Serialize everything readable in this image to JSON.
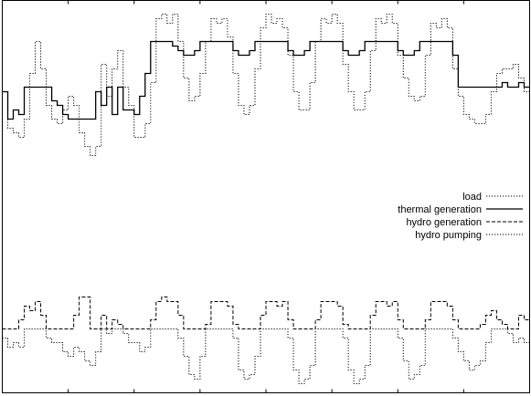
{
  "chart_data": {
    "type": "line",
    "title": "",
    "xlabel": "",
    "ylabel": "",
    "xlim": [
      0,
      48
    ],
    "ylim": [
      -14,
      72
    ],
    "grid": false,
    "legend_position": "right-middle",
    "series": [
      {
        "name": "load",
        "dash": "dotted",
        "x": [
          0,
          0.5,
          1,
          1.5,
          2,
          2.5,
          3,
          3.5,
          4,
          4.5,
          5,
          5.5,
          6,
          6.5,
          7,
          7.5,
          8,
          8.5,
          9,
          9.5,
          10,
          10.5,
          11,
          11.5,
          12,
          12.5,
          13,
          13.5,
          14,
          14.5,
          15,
          15.5,
          16,
          16.5,
          17,
          17.5,
          18,
          18.5,
          19,
          19.5,
          20,
          20.5,
          21,
          21.5,
          22,
          22.5,
          23,
          23.5,
          24,
          24.5,
          25,
          25.5,
          26,
          26.5,
          27,
          27.5,
          28,
          28.5,
          29,
          29.5,
          30,
          30.5,
          31,
          31.5,
          32,
          32.5,
          33,
          33.5,
          34,
          34.5,
          35,
          35.5,
          36,
          36.5,
          37,
          37.5,
          38,
          38.5,
          39,
          39.5,
          40,
          40.5,
          41,
          41.5,
          42,
          42.5,
          43,
          43.5,
          44,
          44.5,
          45,
          45.5,
          46,
          46.5,
          47,
          47.5,
          48
        ],
        "values": [
          52,
          44,
          43,
          42,
          46,
          56,
          63,
          57,
          49,
          46,
          45,
          48,
          51,
          49,
          43,
          40,
          38,
          40,
          58,
          51,
          57,
          61,
          53,
          49,
          42,
          42,
          45,
          54,
          68,
          69,
          67,
          69,
          63,
          55,
          50,
          51,
          56,
          63,
          68,
          67,
          68,
          64,
          56,
          49,
          47,
          49,
          57,
          66,
          69,
          67,
          68,
          66,
          60,
          52,
          48,
          48,
          54,
          63,
          68,
          67,
          69,
          67,
          58,
          52,
          48,
          48,
          52,
          61,
          68,
          67,
          69,
          67,
          60,
          55,
          51,
          50,
          51,
          60,
          67,
          66,
          68,
          66,
          57,
          51,
          47,
          46,
          45,
          45,
          47,
          52,
          56,
          57,
          57,
          58,
          55,
          52,
          53
        ]
      },
      {
        "name": "thermal generation",
        "dash": "solid",
        "x": [
          0,
          0.5,
          1,
          1.5,
          2,
          2.5,
          3,
          3.5,
          4,
          4.5,
          5,
          5.5,
          6,
          6.5,
          7,
          7.5,
          8,
          8.5,
          9,
          9.5,
          10,
          10.5,
          11,
          11.5,
          12,
          12.5,
          13,
          13.5,
          14,
          14.5,
          15,
          15.5,
          16,
          16.5,
          17,
          17.5,
          18,
          18.5,
          19,
          19.5,
          20,
          20.5,
          21,
          21.5,
          22,
          22.5,
          23,
          23.5,
          24,
          24.5,
          25,
          25.5,
          26,
          26.5,
          27,
          27.5,
          28,
          28.5,
          29,
          29.5,
          30,
          30.5,
          31,
          31.5,
          32,
          32.5,
          33,
          33.5,
          34,
          34.5,
          35,
          35.5,
          36,
          36.5,
          37,
          37.5,
          38,
          38.5,
          39,
          39.5,
          40,
          40.5,
          41,
          41.5,
          42,
          42.5,
          43,
          43.5,
          44,
          44.5,
          45,
          45.5,
          46,
          46.5,
          47,
          47.5,
          48
        ],
        "values": [
          52,
          46,
          48,
          47,
          53,
          53,
          53,
          53,
          53,
          50,
          49,
          47,
          46,
          46,
          46,
          46,
          46,
          52,
          49,
          53,
          47,
          53,
          48,
          48,
          47,
          51,
          56,
          63,
          63,
          63,
          63,
          62,
          61,
          60,
          60,
          61,
          63,
          63,
          63,
          63,
          63,
          63,
          61,
          60,
          60,
          61,
          63,
          63,
          63,
          63,
          63,
          63,
          61,
          60,
          60,
          61,
          63,
          63,
          63,
          63,
          63,
          63,
          61,
          60,
          60,
          61,
          63,
          63,
          63,
          63,
          63,
          63,
          61,
          60,
          60,
          61,
          63,
          63,
          63,
          63,
          63,
          63,
          60,
          53,
          53,
          53,
          53,
          53,
          53,
          53,
          53,
          54,
          53,
          53,
          54,
          53,
          53
        ]
      },
      {
        "name": "hydro generation",
        "dash": "dashed",
        "x": [
          0,
          0.5,
          1,
          1.5,
          2,
          2.5,
          3,
          3.5,
          4,
          4.5,
          5,
          5.5,
          6,
          6.5,
          7,
          7.5,
          8,
          8.5,
          9,
          9.5,
          10,
          10.5,
          11,
          11.5,
          12,
          12.5,
          13,
          13.5,
          14,
          14.5,
          15,
          15.5,
          16,
          16.5,
          17,
          17.5,
          18,
          18.5,
          19,
          19.5,
          20,
          20.5,
          21,
          21.5,
          22,
          22.5,
          23,
          23.5,
          24,
          24.5,
          25,
          25.5,
          26,
          26.5,
          27,
          27.5,
          28,
          28.5,
          29,
          29.5,
          30,
          30.5,
          31,
          31.5,
          32,
          32.5,
          33,
          33.5,
          34,
          34.5,
          35,
          35.5,
          36,
          36.5,
          37,
          37.5,
          38,
          38.5,
          39,
          39.5,
          40,
          40.5,
          41,
          41.5,
          42,
          42.5,
          43,
          43.5,
          44,
          44.5,
          45,
          45.5,
          46,
          46.5,
          47,
          47.5,
          48
        ],
        "values": [
          0,
          0,
          0,
          2,
          5,
          4,
          6,
          3,
          0,
          0,
          0,
          0,
          0,
          3,
          7,
          7,
          0,
          0,
          3,
          0,
          2,
          1,
          0,
          0,
          0,
          0,
          0,
          2,
          6,
          7,
          6,
          6,
          3,
          0,
          0,
          0,
          0,
          1,
          6,
          6,
          6,
          5,
          1,
          0,
          0,
          0,
          0,
          3,
          6,
          6,
          5,
          6,
          2,
          0,
          0,
          0,
          0,
          2,
          6,
          6,
          6,
          5,
          1,
          0,
          0,
          0,
          0,
          3,
          6,
          6,
          5,
          6,
          2,
          0,
          0,
          0,
          0,
          2,
          6,
          6,
          6,
          5,
          2,
          0,
          0,
          0,
          0,
          1,
          3,
          4,
          2,
          1,
          0,
          0,
          3,
          2,
          0
        ]
      },
      {
        "name": "hydro pumping",
        "dash": "dotted",
        "x": [
          0,
          0.5,
          1,
          1.5,
          2,
          2.5,
          3,
          3.5,
          4,
          4.5,
          5,
          5.5,
          6,
          6.5,
          7,
          7.5,
          8,
          8.5,
          9,
          9.5,
          10,
          10.5,
          11,
          11.5,
          12,
          12.5,
          13,
          13.5,
          14,
          14.5,
          15,
          15.5,
          16,
          16.5,
          17,
          17.5,
          18,
          18.5,
          19,
          19.5,
          20,
          20.5,
          21,
          21.5,
          22,
          22.5,
          23,
          23.5,
          24,
          24.5,
          25,
          25.5,
          26,
          26.5,
          27,
          27.5,
          28,
          28.5,
          29,
          29.5,
          30,
          30.5,
          31,
          31.5,
          32,
          32.5,
          33,
          33.5,
          34,
          34.5,
          35,
          35.5,
          36,
          36.5,
          37,
          37.5,
          38,
          38.5,
          39,
          39.5,
          40,
          40.5,
          41,
          41.5,
          42,
          42.5,
          43,
          43.5,
          44,
          44.5,
          45,
          45.5,
          46,
          46.5,
          47,
          47.5,
          48
        ],
        "values": [
          -2,
          -4,
          -3,
          -4,
          0,
          0,
          0,
          0,
          -2,
          -3,
          -3,
          -5,
          -6,
          -4,
          -5,
          -7,
          -8,
          -5,
          0,
          -1,
          0,
          0,
          -1,
          -3,
          -3,
          -5,
          -4,
          0,
          0,
          0,
          0,
          0,
          -2,
          -6,
          -10,
          -11,
          -6,
          0,
          0,
          0,
          0,
          0,
          -2,
          -9,
          -11,
          -10,
          -6,
          0,
          0,
          0,
          0,
          0,
          -2,
          -9,
          -12,
          -11,
          -8,
          0,
          0,
          0,
          0,
          0,
          -2,
          -9,
          -12,
          -11,
          -8,
          0,
          0,
          0,
          0,
          0,
          -2,
          -7,
          -11,
          -10,
          -8,
          0,
          0,
          0,
          0,
          0,
          -2,
          -5,
          -7,
          -9,
          -8,
          -7,
          -3,
          0,
          0,
          0,
          -1,
          -3,
          -2,
          -3,
          -4
        ]
      }
    ]
  }
}
